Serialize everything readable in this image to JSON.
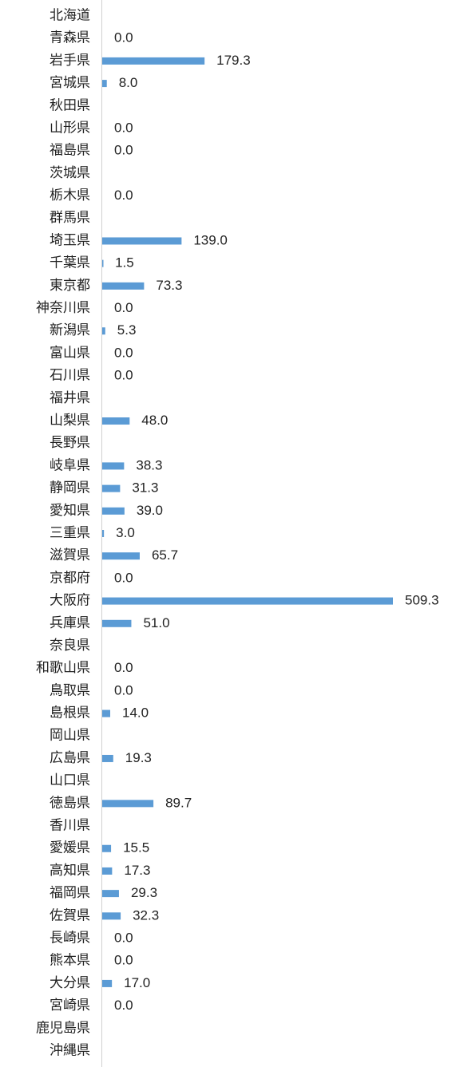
{
  "chart_data": {
    "type": "hbar",
    "color": "#5b9bd5",
    "categories": [
      "北海道",
      "青森県",
      "岩手県",
      "宮城県",
      "秋田県",
      "山形県",
      "福島県",
      "茨城県",
      "栃木県",
      "群馬県",
      "埼玉県",
      "千葉県",
      "東京都",
      "神奈川県",
      "新潟県",
      "富山県",
      "石川県",
      "福井県",
      "山梨県",
      "長野県",
      "岐阜県",
      "静岡県",
      "愛知県",
      "三重県",
      "滋賀県",
      "京都府",
      "大阪府",
      "兵庫県",
      "奈良県",
      "和歌山県",
      "鳥取県",
      "島根県",
      "岡山県",
      "広島県",
      "山口県",
      "徳島県",
      "香川県",
      "愛媛県",
      "高知県",
      "福岡県",
      "佐賀県",
      "長崎県",
      "熊本県",
      "大分県",
      "宮崎県",
      "鹿児島県",
      "沖縄県"
    ],
    "values": [
      null,
      0,
      179.3,
      8,
      null,
      0,
      0,
      null,
      0,
      null,
      139,
      1.5,
      73.3,
      0,
      5.3,
      0,
      0,
      null,
      48,
      null,
      38.3,
      31.3,
      39,
      3,
      65.7,
      0,
      509.3,
      51,
      null,
      0,
      0,
      14,
      null,
      19.3,
      null,
      89.7,
      null,
      15.5,
      17.3,
      29.3,
      32.3,
      0,
      0,
      17,
      0,
      null,
      null
    ],
    "value_labels": [
      null,
      "0.0",
      "179.3",
      "8.0",
      null,
      "0.0",
      "0.0",
      null,
      "0.0",
      null,
      "139.0",
      "1.5",
      "73.3",
      "0.0",
      "5.3",
      "0.0",
      "0.0",
      null,
      "48.0",
      null,
      "38.3",
      "31.3",
      "39.0",
      "3.0",
      "65.7",
      "0.0",
      "509.3",
      "51.0",
      null,
      "0.0",
      "0.0",
      "14.0",
      null,
      "19.3",
      null,
      "89.7",
      null,
      "15.5",
      "17.3",
      "29.3",
      "32.3",
      "0.0",
      "0.0",
      "17.0",
      "0.0",
      null,
      null
    ]
  }
}
